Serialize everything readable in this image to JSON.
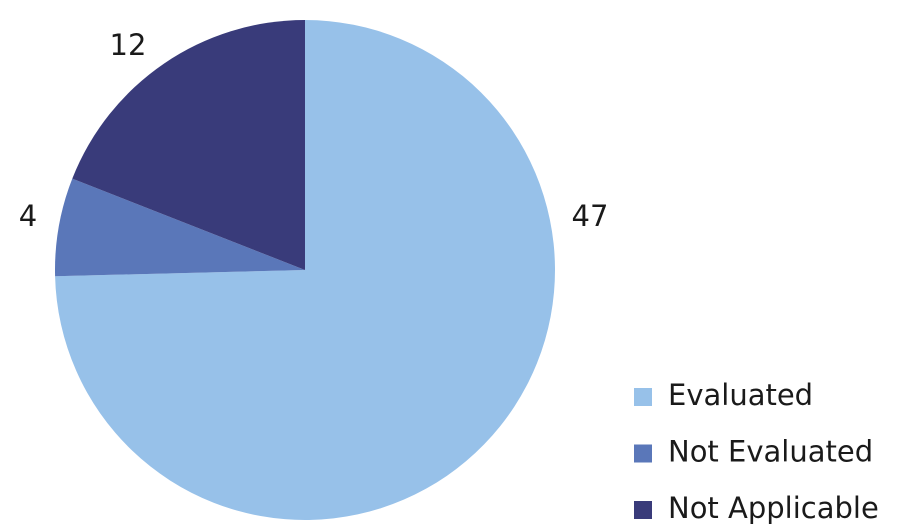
{
  "chart_data": {
    "type": "pie",
    "categories": [
      "Evaluated",
      "Not Evaluated",
      "Not Applicable"
    ],
    "values": [
      47,
      4,
      12
    ],
    "colors": [
      "#97c1e9",
      "#5a77b9",
      "#393b7a"
    ],
    "legend": "bottom-right"
  }
}
